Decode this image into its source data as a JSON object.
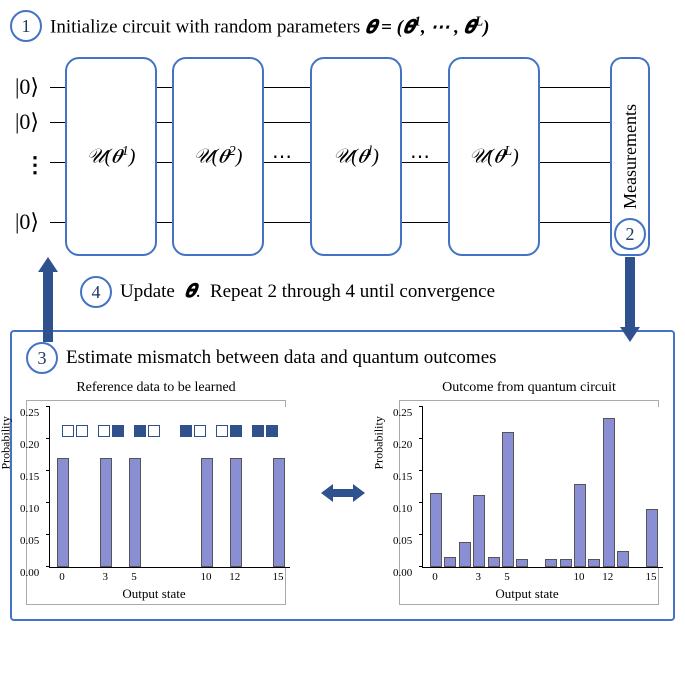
{
  "steps": {
    "s1_num": "1",
    "s1_text": "Initialize circuit with random parameters  ",
    "s1_math": "θ = (θ¹, ⋯ , θᴸ)",
    "s2_num": "2",
    "s2_label": "Measurements",
    "s3_num": "3",
    "s3_text": "Estimate mismatch between data and quantum outcomes",
    "s4_num": "4",
    "s4_text": "Update  θ.  Repeat 2 through 4 until convergence"
  },
  "circuit": {
    "kets": [
      "|0⟩",
      "|0⟩",
      "|0⟩"
    ],
    "gate_labels": [
      "𝒰(θ¹)",
      "𝒰(θ²)",
      "⋯",
      "𝒰(θˡ)",
      "⋯",
      "𝒰(θᴸ)"
    ],
    "vdots": "⋮",
    "gate_border": "#4472c4"
  },
  "chart_left": {
    "title": "Reference data to be learned",
    "ylabel": "Probability",
    "xlabel": "Output state",
    "ylim": 0.25,
    "yticks": [
      0.0,
      0.05,
      0.1,
      0.15,
      0.2,
      0.25
    ],
    "xticks": [
      0,
      3,
      5,
      10,
      12,
      15
    ],
    "bars": [
      {
        "x": 0,
        "y": 0.167
      },
      {
        "x": 3,
        "y": 0.167
      },
      {
        "x": 5,
        "y": 0.167
      },
      {
        "x": 10,
        "y": 0.167
      },
      {
        "x": 12,
        "y": 0.167
      },
      {
        "x": 15,
        "y": 0.167
      }
    ],
    "bar_color": "#8a8fd4"
  },
  "chart_right": {
    "title": "Outcome from quantum circuit",
    "ylabel": "Probability",
    "xlabel": "Output state",
    "ylim": 0.25,
    "yticks": [
      0.0,
      0.05,
      0.1,
      0.15,
      0.2,
      0.25
    ],
    "xticks": [
      0,
      3,
      5,
      10,
      12,
      15
    ],
    "bars": [
      {
        "x": 0,
        "y": 0.113
      },
      {
        "x": 1,
        "y": 0.013
      },
      {
        "x": 2,
        "y": 0.036
      },
      {
        "x": 3,
        "y": 0.11
      },
      {
        "x": 4,
        "y": 0.012
      },
      {
        "x": 5,
        "y": 0.208
      },
      {
        "x": 6,
        "y": 0.009
      },
      {
        "x": 8,
        "y": 0.01
      },
      {
        "x": 9,
        "y": 0.01
      },
      {
        "x": 10,
        "y": 0.127
      },
      {
        "x": 11,
        "y": 0.01
      },
      {
        "x": 12,
        "y": 0.23
      },
      {
        "x": 13,
        "y": 0.022
      },
      {
        "x": 15,
        "y": 0.087
      }
    ],
    "bar_color": "#8a8fd4"
  },
  "colors": {
    "accent": "#4472c4",
    "arrow": "#2f528f"
  }
}
